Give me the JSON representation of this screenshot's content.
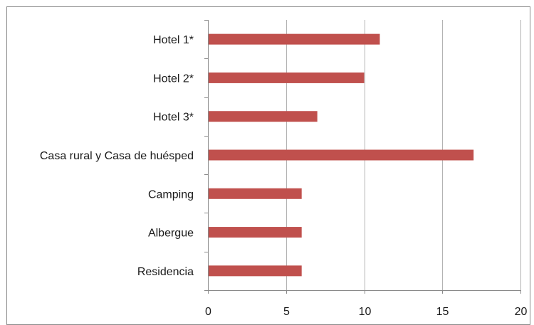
{
  "chart_data": {
    "type": "bar",
    "orientation": "horizontal",
    "categories": [
      "Hotel 1*",
      "Hotel 2*",
      "Hotel 3*",
      "Casa rural y  Casa de huésped",
      "Camping",
      "Albergue",
      "Residencia"
    ],
    "values": [
      11,
      10,
      7,
      17,
      6,
      6,
      6
    ],
    "x_ticks": [
      "0",
      "5",
      "10",
      "15",
      "20"
    ],
    "xlim": [
      0,
      20
    ],
    "bar_color": "#c0504d",
    "grid": "vertical major gridlines",
    "legend": "none",
    "title": "",
    "xlabel": "",
    "ylabel": ""
  }
}
